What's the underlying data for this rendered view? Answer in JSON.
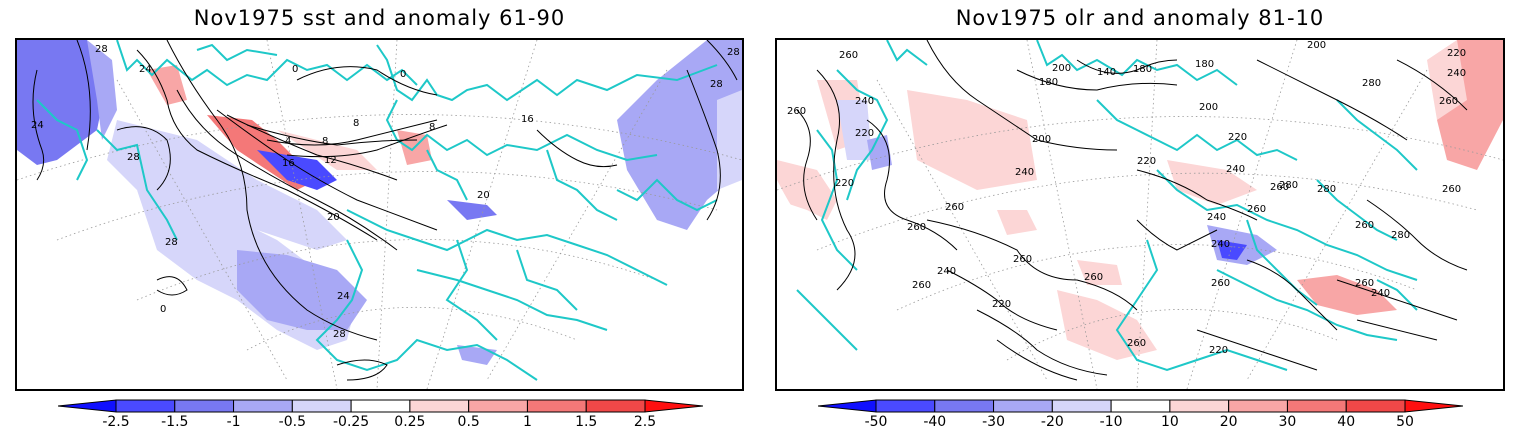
{
  "panels": [
    {
      "title": "Nov1975 sst and anomaly 61-90",
      "colorbar": {
        "ticks": [
          "-2.5",
          "-1.5",
          "-1",
          "-0.5",
          "-0.25",
          "0.25",
          "0.5",
          "1",
          "1.5",
          "2.5"
        ],
        "colors": [
          "#1010ff",
          "#4a4aff",
          "#7878f2",
          "#a8a8f5",
          "#d6d6fa",
          "#ffffff",
          "#fcd6d6",
          "#f8a6a6",
          "#f47878",
          "#f04848",
          "#ff1010"
        ]
      },
      "contour_labels": [
        "28",
        "24",
        "28",
        "24",
        "0",
        "0",
        "4",
        "8",
        "8",
        "8",
        "12",
        "16",
        "16",
        "20",
        "20",
        "28",
        "24",
        "28",
        "28",
        "28",
        "0"
      ]
    },
    {
      "title": "Nov1975 olr and anomaly 81-10",
      "colorbar": {
        "ticks": [
          "-50",
          "-40",
          "-30",
          "-20",
          "-10",
          "10",
          "20",
          "30",
          "40",
          "50"
        ],
        "colors": [
          "#1010ff",
          "#4a4aff",
          "#7878f2",
          "#a8a8f5",
          "#d6d6fa",
          "#ffffff",
          "#fcd6d6",
          "#f8a6a6",
          "#f47878",
          "#f04848",
          "#ff1010"
        ]
      },
      "contour_labels": [
        "260",
        "240",
        "220",
        "220",
        "200",
        "180",
        "140",
        "180",
        "180",
        "200",
        "200",
        "280",
        "220",
        "240",
        "260",
        "260",
        "200",
        "220",
        "240",
        "220",
        "240",
        "260",
        "280",
        "280",
        "260",
        "260",
        "240",
        "260",
        "260",
        "240",
        "280",
        "260",
        "260",
        "260",
        "240",
        "260",
        "220",
        "240",
        "260",
        "260",
        "220",
        "260"
      ]
    }
  ],
  "colors": {
    "coastline": "#1ec8c8",
    "contour": "#000000",
    "grid": "#9a9a9a"
  }
}
